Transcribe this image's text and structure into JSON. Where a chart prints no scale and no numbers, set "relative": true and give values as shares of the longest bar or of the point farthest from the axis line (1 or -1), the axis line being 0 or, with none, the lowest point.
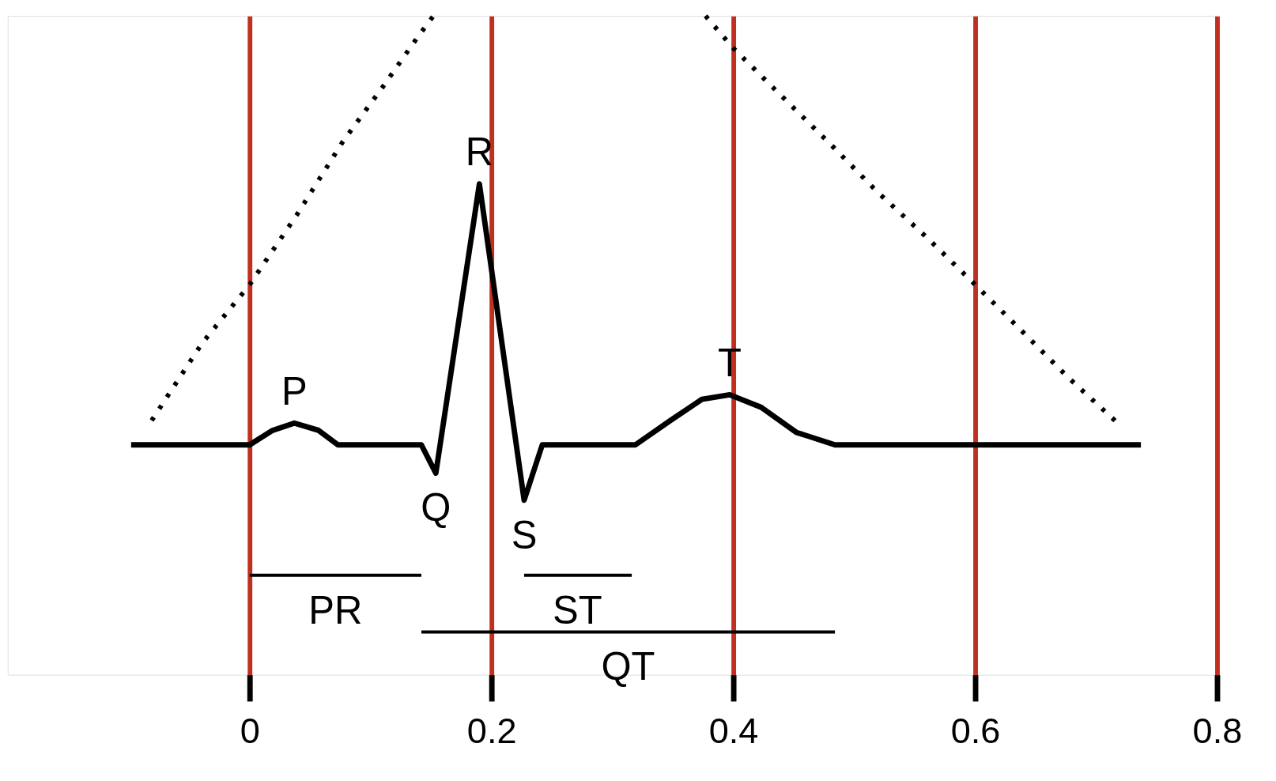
{
  "chart_data": {
    "type": "line",
    "relative": true,
    "xlim": [
      -0.2,
      0.8
    ],
    "xticks": [
      0,
      0.2,
      0.4,
      0.6,
      0.8
    ],
    "grid": "x",
    "marker": "none",
    "series": [
      {
        "color": "#000000",
        "line_style": "solid",
        "x": [
          -0.098,
          0,
          0.019,
          0.037,
          0.057,
          0.073,
          0.142,
          0.154,
          0.19,
          0.227,
          0.242,
          0.319,
          0.348,
          0.374,
          0.397,
          0.423,
          0.452,
          0.484,
          0.737
        ],
        "values": [
          0.349,
          0.349,
          0.371,
          0.382,
          0.371,
          0.349,
          0.349,
          0.306,
          0.745,
          0.265,
          0.349,
          0.349,
          0.386,
          0.418,
          0.425,
          0.406,
          0.368,
          0.349,
          0.349
        ]
      },
      {
        "color": "#000000",
        "line_style": "dotted",
        "x": [
          -0.081,
          -0.039,
          0,
          0.039,
          0.077,
          0.11,
          0.139,
          0.152,
          0.26,
          0.377,
          0.4,
          0.439,
          0.481,
          0.519,
          0.561,
          0.6,
          0.639,
          0.677,
          0.719
        ],
        "values": [
          0.386,
          0.504,
          0.592,
          0.698,
          0.809,
          0.892,
          0.968,
          1.0,
          null,
          1.0,
          0.951,
          0.88,
          0.804,
          0.733,
          0.662,
          0.592,
          0.521,
          0.451,
          0.38
        ]
      },
      {
        "color": "#000000",
        "line_style": "solid",
        "x": [
          0,
          0.142
        ],
        "values": [
          0.151,
          0.151
        ]
      },
      {
        "color": "#000000",
        "line_style": "solid",
        "x": [
          0.227,
          0.316
        ],
        "values": [
          0.151,
          0.151
        ]
      },
      {
        "color": "#000000",
        "line_style": "solid",
        "x": [
          0.142,
          0.484
        ],
        "values": [
          0.065,
          0.065
        ]
      }
    ],
    "annotations": [
      {
        "text": "P",
        "x": 0.037,
        "y": 0.382
      },
      {
        "text": "R",
        "x": 0.19,
        "y": 0.745
      },
      {
        "text": "Q",
        "x": 0.154,
        "y": 0.306
      },
      {
        "text": "S",
        "x": 0.227,
        "y": 0.265
      },
      {
        "text": "T",
        "x": 0.397,
        "y": 0.425
      },
      {
        "text": "PR",
        "x": 0.071,
        "y": 0.151
      },
      {
        "text": "ST",
        "x": 0.271,
        "y": 0.151
      },
      {
        "text": "QT",
        "x": 0.313,
        "y": 0.065
      }
    ]
  }
}
